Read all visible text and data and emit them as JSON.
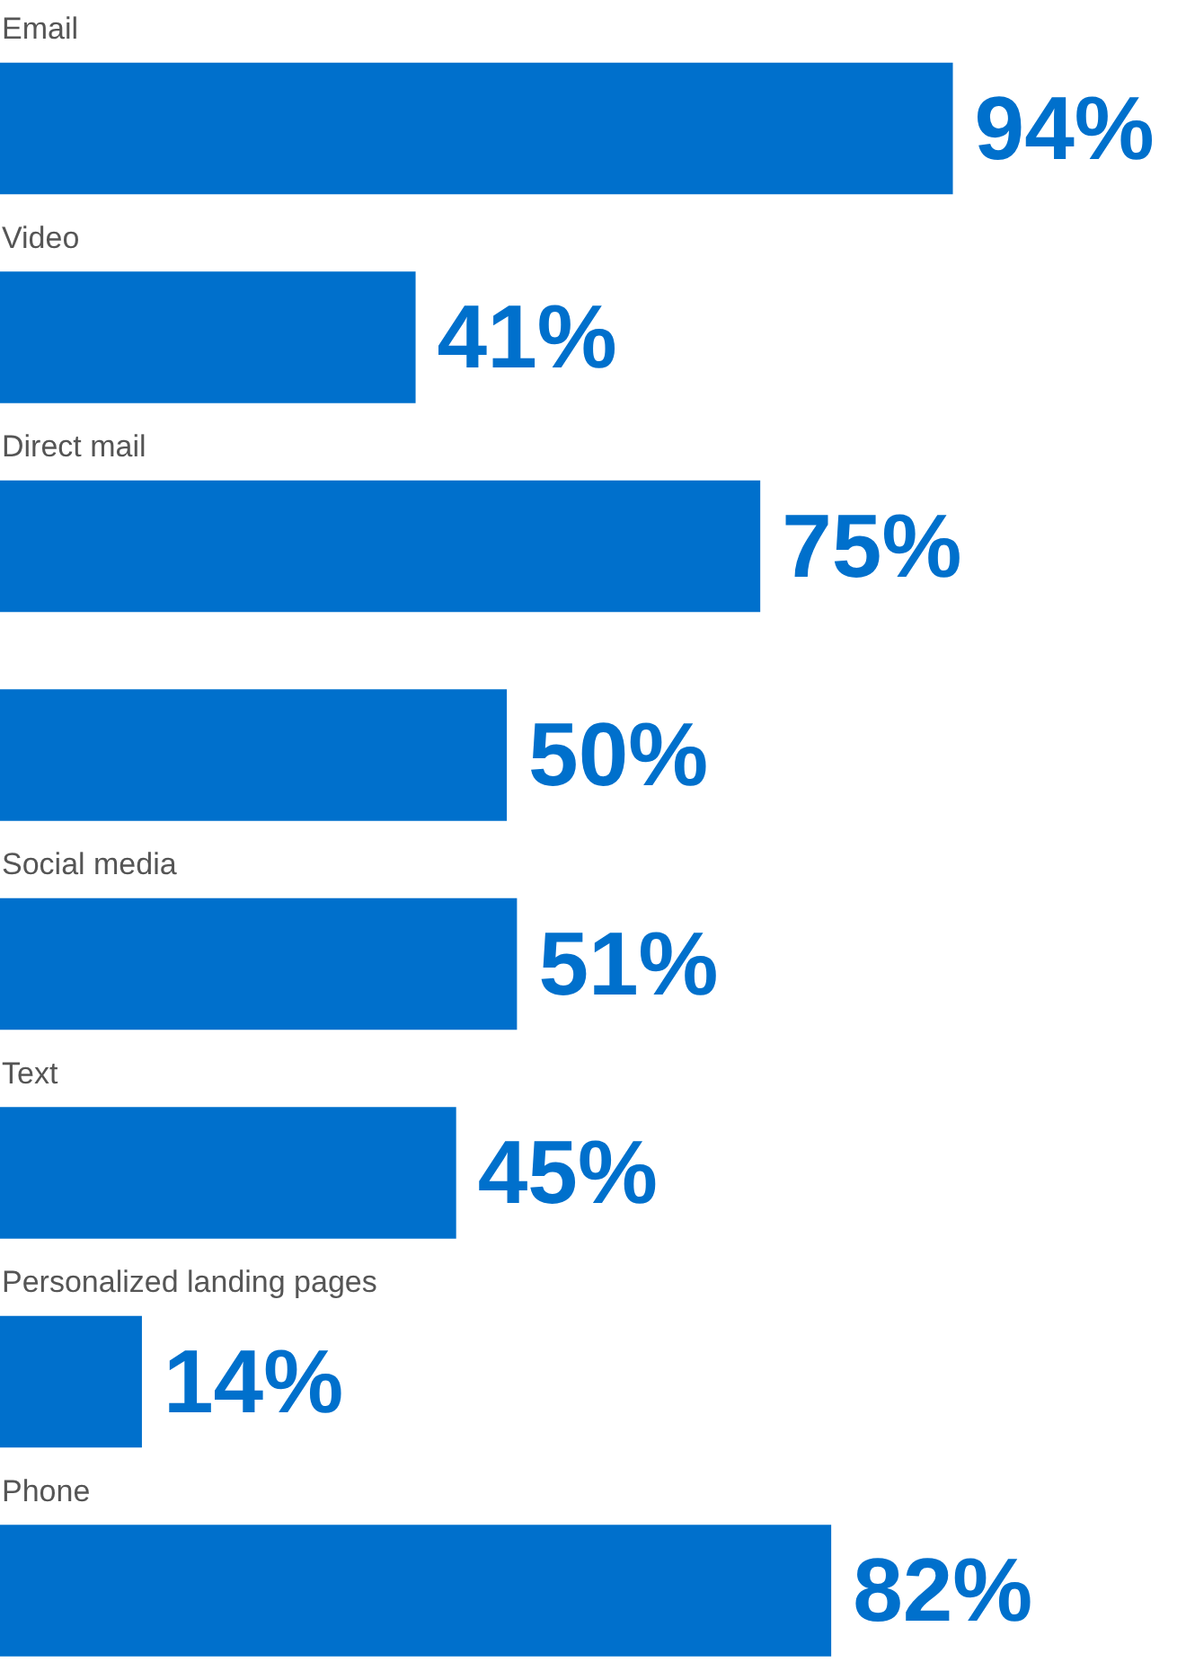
{
  "chart_data": {
    "type": "bar",
    "orientation": "horizontal",
    "categories": [
      "Email",
      "Video",
      "Direct mail",
      null,
      "Social media",
      "Text",
      "Personalized landing pages",
      "Phone"
    ],
    "values": [
      94,
      41,
      75,
      50,
      51,
      45,
      14,
      82
    ],
    "value_labels": [
      "94%",
      "41%",
      "75%",
      "50%",
      "51%",
      "45%",
      "14%",
      "82%"
    ],
    "color": "#0070cc",
    "xlim": [
      0,
      117
    ]
  }
}
